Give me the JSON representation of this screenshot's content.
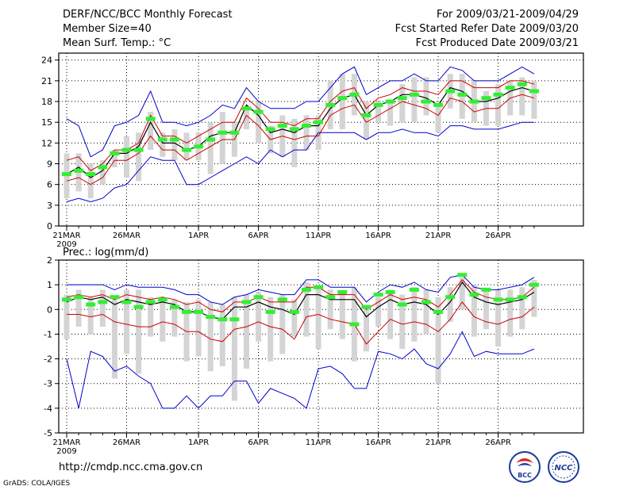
{
  "header": {
    "title": "DERF/NCC/BCC Monthly Forecast",
    "member_size": "Member Size=40",
    "variable": "Mean Surf. Temp.: °C",
    "period": "For 2009/03/21-2009/04/29",
    "fcst_started": "Fcst Started Refer Date 2009/03/20",
    "fcst_produced": "Fcst Produced Date 2009/03/21"
  },
  "precip_title": "Prec.: log(mm/d)",
  "footer": {
    "url": "http://cmdp.ncc.cma.gov.cn",
    "credit": "GrADS: COLA/IGES"
  },
  "logos": {
    "bcc": "BCC",
    "ncc": "NCC"
  },
  "colors": {
    "envelope": "#0000cc",
    "spread": "#cc0000",
    "mean": "#000000",
    "obs": "#33ee33",
    "box": "#d4d4d4"
  },
  "chart_data": [
    {
      "type": "line",
      "title": "Mean Surf. Temp.: °C",
      "x_tick_labels": [
        "21MAR",
        "26MAR",
        "1APR",
        "6APR",
        "11APR",
        "16APR",
        "21APR",
        "26APR"
      ],
      "x_tick_days": [
        1,
        6,
        12,
        17,
        22,
        27,
        32,
        37
      ],
      "year_label": "2009",
      "ylim": [
        0,
        25
      ],
      "yticks": [
        0,
        3,
        6,
        9,
        12,
        15,
        18,
        21,
        24
      ],
      "days": [
        1,
        2,
        3,
        4,
        5,
        6,
        7,
        8,
        9,
        10,
        11,
        12,
        13,
        14,
        15,
        16,
        17,
        18,
        19,
        20,
        21,
        22,
        23,
        24,
        25,
        26,
        27,
        28,
        29,
        30,
        31,
        32,
        33,
        34,
        35,
        36,
        37,
        38,
        39,
        40
      ],
      "series": [
        {
          "name": "max",
          "values": [
            15.5,
            14.5,
            10,
            11,
            14.5,
            15,
            16,
            19.5,
            15,
            15,
            14.5,
            15,
            16,
            17.5,
            17,
            20,
            18,
            17,
            17,
            17,
            18,
            18,
            20,
            22,
            23,
            19,
            20,
            21,
            21,
            22,
            21,
            21,
            23,
            22.5,
            21,
            21,
            21,
            22,
            23,
            22
          ]
        },
        {
          "name": "upper",
          "values": [
            9.5,
            10,
            8,
            9,
            11,
            11,
            12,
            16,
            13,
            13,
            12,
            13,
            14,
            15,
            15,
            18.5,
            17,
            15,
            15,
            14.5,
            15.5,
            15.5,
            18,
            19.5,
            20,
            17,
            18.5,
            19,
            20,
            19.5,
            19.5,
            19,
            21,
            21,
            20,
            20,
            20,
            21,
            21,
            20.5
          ]
        },
        {
          "name": "mean",
          "values": [
            7.5,
            8.5,
            7,
            8,
            10.5,
            10.5,
            11.5,
            15,
            12,
            12,
            11,
            11.5,
            13,
            13.5,
            13.5,
            17.5,
            16,
            13.5,
            14,
            13.5,
            14.5,
            14.5,
            17,
            18.5,
            19,
            16,
            17.5,
            18,
            19,
            19,
            18.5,
            17.5,
            20,
            19.5,
            18,
            18,
            18.5,
            19.5,
            20,
            19.5
          ]
        },
        {
          "name": "lower",
          "values": [
            6.5,
            7,
            6,
            7,
            9.5,
            9.5,
            10.5,
            13,
            11,
            11,
            9.5,
            10.5,
            11.5,
            12.5,
            12.5,
            16,
            14.5,
            12.5,
            13,
            12.5,
            13,
            13,
            16,
            17,
            17.5,
            15,
            16,
            17,
            18,
            17.5,
            17,
            16,
            18.5,
            18,
            16.5,
            17,
            17,
            18.5,
            19,
            18.5
          ]
        },
        {
          "name": "min",
          "values": [
            3.5,
            4,
            3.5,
            4,
            5.5,
            6,
            8,
            10,
            9.5,
            9.5,
            6,
            6,
            7,
            8,
            9,
            10,
            9,
            11,
            10,
            11,
            11,
            13.5,
            13.5,
            13.5,
            13.5,
            12.5,
            13.5,
            13.5,
            14,
            13.5,
            13.5,
            13,
            14.5,
            14.5,
            14,
            14,
            14,
            14.5,
            15,
            15
          ]
        },
        {
          "name": "obs",
          "values": [
            7.5,
            8,
            7.5,
            8.5,
            10.5,
            11,
            11,
            15.5,
            12.5,
            12.5,
            11,
            11.5,
            12.5,
            13.5,
            13.5,
            17,
            16.5,
            14,
            14.5,
            14,
            14.5,
            15,
            17.5,
            18.5,
            19,
            16,
            17.5,
            18,
            18.5,
            19,
            18,
            17.5,
            19.5,
            19,
            18,
            18.5,
            19,
            20,
            20.5,
            19.5
          ]
        },
        {
          "name": "box_top",
          "values": [
            10.5,
            10.5,
            9,
            9.5,
            11,
            13,
            13.5,
            16.5,
            13.5,
            14,
            13.5,
            13.5,
            15,
            16.5,
            15,
            17,
            18,
            14.5,
            16,
            15.5,
            16,
            16,
            21,
            22,
            22,
            18,
            18,
            18,
            20.5,
            21.5,
            21.5,
            17.5,
            22,
            22,
            21,
            19.5,
            20.5,
            21,
            21.5,
            21
          ]
        },
        {
          "name": "box_bottom",
          "values": [
            4,
            5,
            4,
            6,
            8.5,
            7,
            6.5,
            11,
            10,
            9.5,
            9.5,
            9.5,
            7.5,
            9,
            10,
            14,
            12,
            10.5,
            10,
            8.5,
            11,
            11,
            14,
            14,
            16,
            12.5,
            15,
            14.5,
            15,
            15,
            16,
            13.5,
            17,
            15.5,
            15,
            14.5,
            14.5,
            16,
            16,
            15.5
          ]
        }
      ]
    },
    {
      "type": "line",
      "title": "Prec.: log(mm/d)",
      "x_tick_labels": [
        "21MAR",
        "26MAR",
        "1APR",
        "6APR",
        "11APR",
        "16APR",
        "21APR",
        "26APR"
      ],
      "x_tick_days": [
        1,
        6,
        12,
        17,
        22,
        27,
        32,
        37
      ],
      "year_label": "2009",
      "ylim": [
        -5,
        2
      ],
      "yticks": [
        -5,
        -4,
        -3,
        -2,
        -1,
        0,
        1,
        2
      ],
      "days": [
        1,
        2,
        3,
        4,
        5,
        6,
        7,
        8,
        9,
        10,
        11,
        12,
        13,
        14,
        15,
        16,
        17,
        18,
        19,
        20,
        21,
        22,
        23,
        24,
        25,
        26,
        27,
        28,
        29,
        30,
        31,
        32,
        33,
        34,
        35,
        36,
        37,
        38,
        39,
        40
      ],
      "series": [
        {
          "name": "max",
          "values": [
            1,
            1,
            1,
            1,
            0.8,
            1,
            0.9,
            0.9,
            0.9,
            0.8,
            0.6,
            0.6,
            0.3,
            0.2,
            0.5,
            0.6,
            0.8,
            0.7,
            0.6,
            0.6,
            1.2,
            1.2,
            0.9,
            0.9,
            0.9,
            0.3,
            0.7,
            1,
            0.9,
            1.1,
            0.8,
            0.7,
            1.3,
            1.4,
            0.9,
            0.8,
            0.8,
            0.9,
            1,
            1.3
          ]
        },
        {
          "name": "upper",
          "values": [
            0.5,
            0.6,
            0.5,
            0.6,
            0.4,
            0.6,
            0.5,
            0.4,
            0.5,
            0.4,
            0.2,
            0.3,
            0,
            -0.1,
            0.3,
            0.3,
            0.5,
            0.3,
            0.3,
            0.3,
            0.9,
            0.9,
            0.6,
            0.6,
            0.6,
            0,
            0.3,
            0.6,
            0.4,
            0.5,
            0.4,
            0.1,
            0.6,
            1.2,
            0.7,
            0.5,
            0.4,
            0.4,
            0.5,
            0.9
          ]
        },
        {
          "name": "mean",
          "values": [
            0.3,
            0.5,
            0.4,
            0.5,
            0.2,
            0.4,
            0.3,
            0.2,
            0.3,
            0.2,
            -0.1,
            -0.1,
            -0.3,
            -0.4,
            0.1,
            0.1,
            0.3,
            0.1,
            0,
            -0.2,
            0.6,
            0.6,
            0.4,
            0.4,
            0.4,
            -0.3,
            0.1,
            0.4,
            0.2,
            0.3,
            0.2,
            -0.2,
            0.3,
            1.1,
            0.5,
            0.3,
            0.2,
            0.3,
            0.4,
            0.7
          ]
        },
        {
          "name": "lower",
          "values": [
            -0.2,
            -0.2,
            -0.3,
            -0.2,
            -0.5,
            -0.6,
            -0.7,
            -0.7,
            -0.5,
            -0.6,
            -0.9,
            -0.9,
            -1.2,
            -1.3,
            -0.8,
            -0.7,
            -0.5,
            -0.7,
            -0.8,
            -1.2,
            -0.3,
            -0.2,
            -0.4,
            -0.5,
            -0.6,
            -1.4,
            -0.9,
            -0.4,
            -0.6,
            -0.5,
            -0.6,
            -0.9,
            -0.4,
            0.3,
            -0.3,
            -0.5,
            -0.6,
            -0.4,
            -0.3,
            0.1
          ]
        },
        {
          "name": "min",
          "values": [
            -2,
            -4,
            -1.7,
            -1.9,
            -2.5,
            -2.3,
            -2.7,
            -3,
            -4,
            -4,
            -3.5,
            -4,
            -3.5,
            -3.5,
            -2.9,
            -2.9,
            -3.8,
            -3.2,
            -3.4,
            -3.6,
            -4,
            -2.4,
            -2.3,
            -2.6,
            -3.2,
            -3.2,
            -1.7,
            -1.8,
            -2,
            -1.6,
            -2.2,
            -2.4,
            -1.8,
            -0.9,
            -1.9,
            -1.7,
            -1.8,
            -1.8,
            -1.8,
            -1.6
          ]
        },
        {
          "name": "obs",
          "values": [
            0.4,
            0.5,
            0.2,
            0.3,
            0.5,
            0.3,
            0.1,
            0.3,
            0.4,
            0.1,
            -0.1,
            -0.1,
            -0.3,
            -0.4,
            -0.4,
            0.3,
            0.5,
            -0.1,
            0.4,
            -0.1,
            0.8,
            0.9,
            0.5,
            0.7,
            -0.6,
            0.1,
            0.6,
            0.7,
            0.2,
            0.8,
            0.3,
            -0.1,
            0.5,
            1.4,
            0.6,
            0.8,
            0.4,
            0.4,
            0.5,
            1
          ]
        },
        {
          "name": "box_top",
          "values": [
            0.6,
            0.8,
            0.5,
            0.8,
            0.4,
            0.8,
            0.8,
            0.5,
            0.5,
            0.4,
            0.3,
            0.4,
            0.3,
            0.2,
            0.5,
            0.6,
            0.7,
            0.5,
            0.6,
            0.4,
            1.1,
            1,
            0.8,
            0.7,
            0.9,
            0.1,
            0.5,
            0.8,
            0.6,
            0.9,
            0.8,
            0.5,
            0.9,
            1.3,
            1,
            0.8,
            0.8,
            0.8,
            0.9,
            1.2
          ]
        },
        {
          "name": "box_bottom",
          "values": [
            -1.2,
            -0.7,
            -1,
            -0.7,
            -2.8,
            -1.8,
            -2.6,
            -1.1,
            -1.3,
            -1.1,
            -2.1,
            -1.9,
            -2.5,
            -2.3,
            -3.7,
            -2.4,
            -1.3,
            -2.1,
            -1.8,
            -1.1,
            -1.1,
            -1.6,
            -0.8,
            -1.2,
            -2.1,
            -1.7,
            -0.7,
            -1.2,
            -1.6,
            -1.3,
            -1,
            -3,
            -0.5,
            0,
            -1.1,
            -0.8,
            -1.5,
            -1.1,
            -0.8,
            -0.3
          ]
        }
      ]
    }
  ]
}
